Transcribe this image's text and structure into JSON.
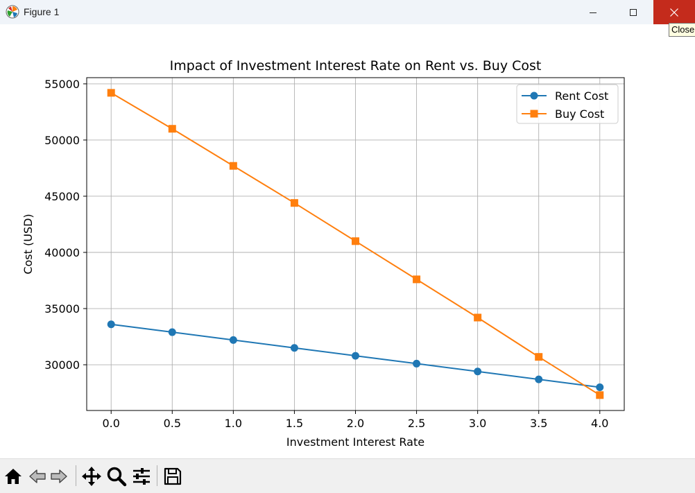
{
  "window": {
    "title": "Figure 1",
    "tooltip": "Close",
    "icon": "matplotlib-logo-icon"
  },
  "toolbar": {
    "buttons": [
      {
        "name": "home-button",
        "icon": "home-icon"
      },
      {
        "name": "back-button",
        "icon": "back-arrow-icon"
      },
      {
        "name": "forward-button",
        "icon": "forward-arrow-icon"
      },
      {
        "name": "pan-button",
        "icon": "pan-arrows-icon"
      },
      {
        "name": "zoom-button",
        "icon": "magnifier-icon"
      },
      {
        "name": "configure-subplots-button",
        "icon": "sliders-icon"
      },
      {
        "name": "save-button",
        "icon": "floppy-disk-icon"
      }
    ]
  },
  "chart_data": {
    "type": "line",
    "title": "Impact of Investment Interest Rate on Rent vs. Buy Cost",
    "xlabel": "Investment Interest Rate",
    "ylabel": "Cost (USD)",
    "x": [
      0.0,
      0.5,
      1.0,
      1.5,
      2.0,
      2.5,
      3.0,
      3.5,
      4.0
    ],
    "x_ticks": [
      "0.0",
      "0.5",
      "1.0",
      "1.5",
      "2.0",
      "2.5",
      "3.0",
      "3.5",
      "4.0"
    ],
    "y_ticks": [
      "30000",
      "35000",
      "40000",
      "45000",
      "50000",
      "55000"
    ],
    "xlim": [
      -0.2,
      4.2
    ],
    "ylim": [
      25930,
      55550
    ],
    "grid": true,
    "legend_position": "top-right",
    "series": [
      {
        "name": "Rent Cost",
        "color": "#1f77b4",
        "marker": "circle",
        "values": [
          33600,
          32900,
          32200,
          31500,
          30800,
          30100,
          29400,
          28700,
          28000
        ]
      },
      {
        "name": "Buy Cost",
        "color": "#ff7f0e",
        "marker": "square",
        "values": [
          54200,
          51000,
          47700,
          44400,
          41000,
          37600,
          34200,
          30700,
          27300
        ]
      }
    ]
  }
}
